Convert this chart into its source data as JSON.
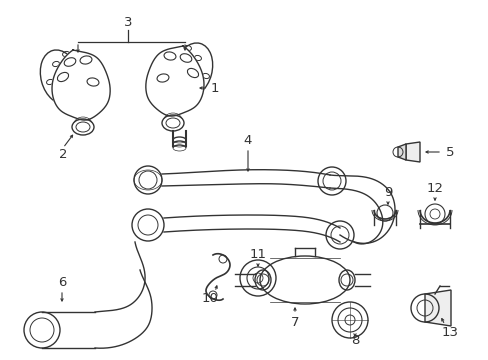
{
  "bg_color": "#ffffff",
  "line_color": "#333333",
  "lw": 1.0,
  "fig_w": 4.89,
  "fig_h": 3.6,
  "dpi": 100
}
